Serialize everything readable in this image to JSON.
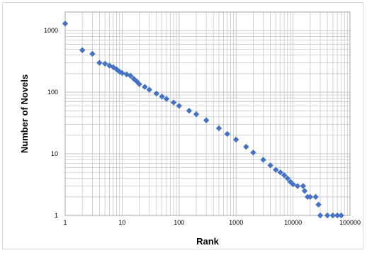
{
  "chart_data": {
    "type": "scatter",
    "title": "",
    "xlabel": "Rank",
    "ylabel": "Number of Novels",
    "x_scale": "log",
    "y_scale": "log",
    "xlim": [
      1,
      100000
    ],
    "ylim": [
      1,
      2000
    ],
    "grid": true,
    "legend": "none",
    "x_ticks": [
      "1",
      "10",
      "100",
      "1000",
      "10000",
      "100000"
    ],
    "y_ticks": [
      "1",
      "10",
      "100",
      "1000"
    ],
    "marker": "diamond",
    "colors": {
      "points": "#4472c4",
      "grid": "#c8c8c8"
    },
    "series": [
      {
        "points": [
          [
            1,
            1300
          ],
          [
            2,
            480
          ],
          [
            3,
            420
          ],
          [
            4,
            300
          ],
          [
            5,
            290
          ],
          [
            6,
            270
          ],
          [
            7,
            255
          ],
          [
            8,
            235
          ],
          [
            9,
            215
          ],
          [
            10,
            205
          ],
          [
            12,
            195
          ],
          [
            14,
            185
          ],
          [
            16,
            165
          ],
          [
            18,
            150
          ],
          [
            20,
            135
          ],
          [
            25,
            122
          ],
          [
            30,
            110
          ],
          [
            40,
            95
          ],
          [
            50,
            85
          ],
          [
            60,
            78
          ],
          [
            80,
            68
          ],
          [
            100,
            60
          ],
          [
            150,
            50
          ],
          [
            200,
            44
          ],
          [
            300,
            35
          ],
          [
            500,
            26
          ],
          [
            700,
            21
          ],
          [
            1000,
            17
          ],
          [
            1500,
            13
          ],
          [
            2000,
            10.5
          ],
          [
            3000,
            8
          ],
          [
            4000,
            6.5
          ],
          [
            5000,
            5.5
          ],
          [
            6000,
            5
          ],
          [
            7000,
            4.5
          ],
          [
            8000,
            4
          ],
          [
            9000,
            3.5
          ],
          [
            10000,
            3.2
          ],
          [
            12000,
            3
          ],
          [
            15000,
            3
          ],
          [
            16000,
            2.5
          ],
          [
            18000,
            2
          ],
          [
            20000,
            2
          ],
          [
            25000,
            2
          ],
          [
            28000,
            1.5
          ],
          [
            30000,
            1
          ],
          [
            40000,
            1
          ],
          [
            50000,
            1
          ],
          [
            60000,
            1
          ],
          [
            70000,
            1
          ]
        ]
      }
    ]
  }
}
